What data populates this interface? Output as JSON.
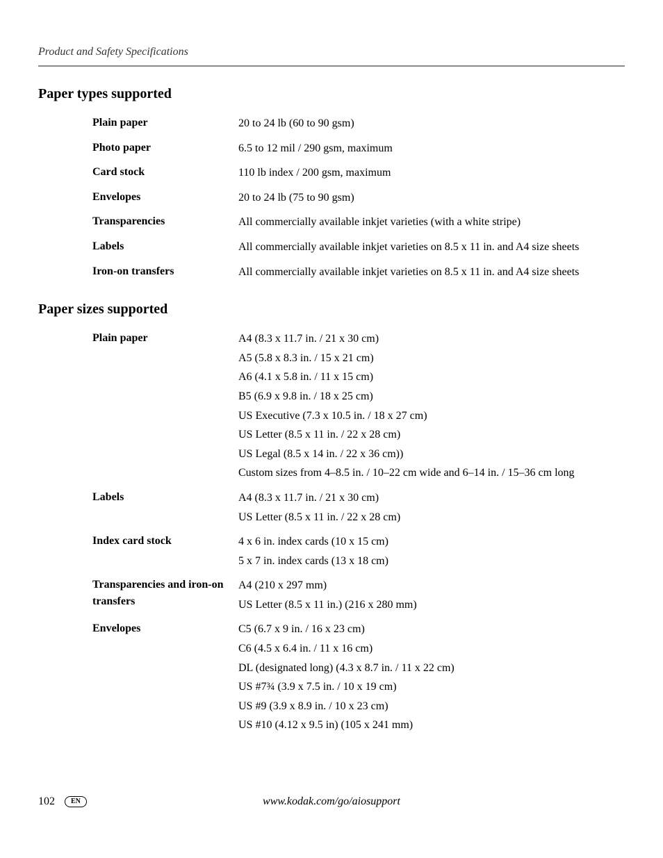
{
  "header": {
    "title": "Product and Safety Specifications"
  },
  "sections": [
    {
      "heading": "Paper types supported",
      "rows": [
        {
          "label": "Plain paper",
          "values": [
            "20 to 24 lb (60 to 90 gsm)"
          ]
        },
        {
          "label": "Photo paper",
          "values": [
            "6.5 to 12 mil / 290 gsm, maximum"
          ]
        },
        {
          "label": "Card stock",
          "values": [
            "110 lb index / 200 gsm, maximum"
          ]
        },
        {
          "label": "Envelopes",
          "values": [
            "20 to 24 lb (75 to 90 gsm)"
          ]
        },
        {
          "label": "Transparencies",
          "values": [
            "All commercially available inkjet varieties (with a white stripe)"
          ]
        },
        {
          "label": "Labels",
          "values": [
            "All commercially available inkjet varieties on 8.5 x 11 in. and A4 size sheets"
          ]
        },
        {
          "label": "Iron-on transfers",
          "values": [
            "All commercially available inkjet varieties on 8.5 x 11 in. and A4 size sheets"
          ]
        }
      ]
    },
    {
      "heading": "Paper sizes supported",
      "rows": [
        {
          "label": "Plain paper",
          "values": [
            "A4 (8.3 x 11.7 in. / 21 x 30 cm)",
            "A5 (5.8 x 8.3 in. / 15 x 21 cm)",
            "A6 (4.1 x 5.8 in. / 11 x 15 cm)",
            "B5 (6.9 x 9.8 in. / 18 x 25 cm)",
            "US Executive (7.3 x 10.5 in. / 18 x 27 cm)",
            "US Letter (8.5 x 11 in. / 22 x 28 cm)",
            "US Legal (8.5 x 14 in. / 22 x 36 cm))",
            "Custom sizes from 4–8.5 in. / 10–22 cm wide and 6–14 in. / 15–36 cm long"
          ]
        },
        {
          "label": "Labels",
          "values": [
            "A4 (8.3 x 11.7 in. / 21 x 30 cm)",
            "US Letter (8.5 x 11 in. / 22 x 28 cm)"
          ]
        },
        {
          "label": "Index card stock",
          "values": [
            "4 x 6 in. index cards (10 x 15 cm)",
            "5 x 7 in. index cards (13 x 18 cm)"
          ]
        },
        {
          "label": "Transparencies and iron-on transfers",
          "values": [
            "A4 (210 x 297 mm)",
            "US Letter (8.5 x 11 in.) (216 x 280 mm)"
          ]
        },
        {
          "label": "Envelopes",
          "values": [
            "C5 (6.7 x 9 in. / 16 x 23 cm)",
            "C6 (4.5 x 6.4 in. / 11 x 16 cm)",
            "DL (designated long) (4.3 x 8.7 in. / 11 x 22 cm)",
            "US #7¾ (3.9 x 7.5 in. / 10 x 19 cm)",
            "US #9 (3.9 x 8.9 in. / 10 x 23 cm)",
            "US #10 (4.12 x 9.5 in) (105 x 241 mm)"
          ]
        }
      ]
    }
  ],
  "footer": {
    "page_number": "102",
    "lang_badge": "EN",
    "url": "www.kodak.com/go/aiosupport"
  }
}
